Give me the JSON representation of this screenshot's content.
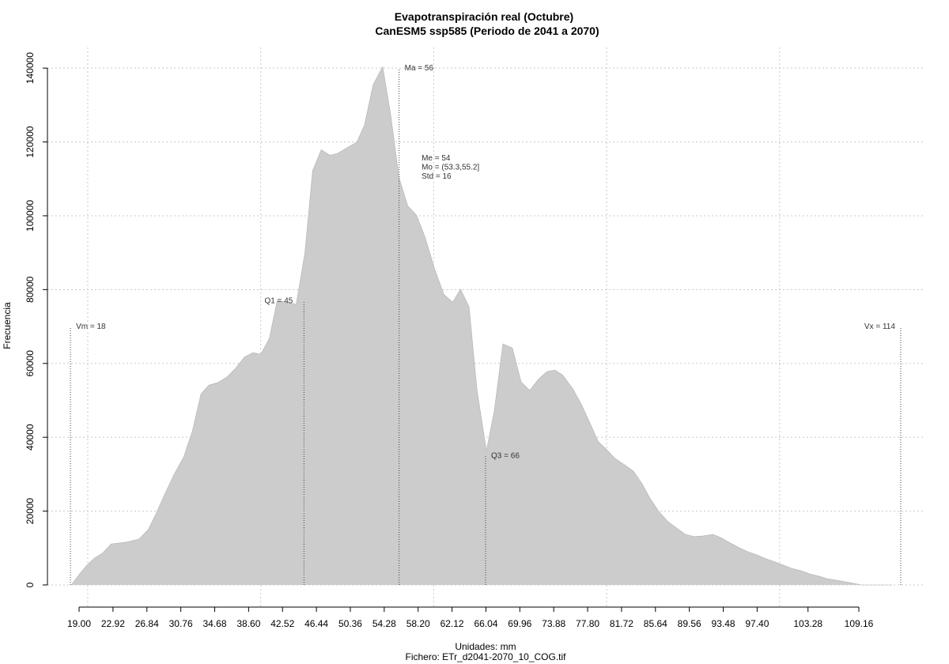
{
  "chart_data": {
    "type": "area",
    "title": "Evapotranspiración real (Octubre)",
    "subtitle": "CanESM5 ssp585 (Periodo de 2041 a 2070)",
    "x_label": "Unidades: mm",
    "caption": "Fichero: ETr_d2041-2070_10_COG.tif",
    "y_label": "Frecuencia",
    "color": "#cccccc",
    "x": [
      18.1,
      19.0,
      19.9,
      20.8,
      21.7,
      22.7,
      24.5,
      25.9,
      27.0,
      27.9,
      28.9,
      30.0,
      31.1,
      32.1,
      33.1,
      34.0,
      35.0,
      36.1,
      37.1,
      38.1,
      39.1,
      40.0,
      41.0,
      41.9,
      43.0,
      44.1,
      45.1,
      46.0,
      47.0,
      48.0,
      48.9,
      50.1,
      51.1,
      52.0,
      53.0,
      54.1,
      55.0,
      56.0,
      57.0,
      58.0,
      59.0,
      60.1,
      61.2,
      62.2,
      63.1,
      64.1,
      65.0,
      66.1,
      67.0,
      68.0,
      69.1,
      70.1,
      71.1,
      72.1,
      73.1,
      74.0,
      74.9,
      76.1,
      77.1,
      78.1,
      79.0,
      80.1,
      81.0,
      82.1,
      83.1,
      84.1,
      85.0,
      86.1,
      87.1,
      88.1,
      89.1,
      90.1,
      91.2,
      92.3,
      93.2,
      94.1,
      95.3,
      96.3,
      97.4,
      98.4,
      99.5,
      100.4,
      101.4,
      102.4,
      103.5,
      104.5,
      105.5,
      106.5,
      107.5,
      108.6,
      109.5,
      110.4,
      113.0
    ],
    "values": [
      0,
      2800,
      5400,
      7300,
      8600,
      11100,
      11600,
      12400,
      15000,
      19300,
      24600,
      30000,
      34700,
      41700,
      51800,
      54100,
      54800,
      56300,
      58700,
      61700,
      62900,
      62500,
      66800,
      77000,
      76600,
      76000,
      89900,
      112200,
      117900,
      116400,
      116900,
      118600,
      119900,
      124600,
      135500,
      140400,
      127800,
      110200,
      102700,
      100200,
      94200,
      85600,
      78600,
      76600,
      80100,
      75300,
      52900,
      36400,
      47100,
      65300,
      64200,
      55000,
      52700,
      55700,
      57800,
      58200,
      56900,
      53100,
      48800,
      43700,
      38900,
      36400,
      34200,
      32500,
      30800,
      27400,
      23500,
      19700,
      17100,
      15400,
      13700,
      13100,
      13300,
      13700,
      12800,
      11600,
      10100,
      9000,
      8100,
      7100,
      6200,
      5400,
      4500,
      3900,
      3000,
      2400,
      1700,
      1300,
      900,
      400,
      0,
      0,
      0
    ],
    "xlim": [
      15.34,
      116.84
    ],
    "ylim": [
      -6000,
      145600
    ],
    "xticks": [
      {
        "value": 19.0,
        "label": "19.00"
      },
      {
        "value": 22.92,
        "label": "22.92"
      },
      {
        "value": 26.84,
        "label": "26.84"
      },
      {
        "value": 30.76,
        "label": "30.76"
      },
      {
        "value": 34.68,
        "label": "34.68"
      },
      {
        "value": 38.6,
        "label": "38.60"
      },
      {
        "value": 42.52,
        "label": "42.52"
      },
      {
        "value": 46.44,
        "label": "46.44"
      },
      {
        "value": 50.36,
        "label": "50.36"
      },
      {
        "value": 54.28,
        "label": "54.28"
      },
      {
        "value": 58.2,
        "label": "58.20"
      },
      {
        "value": 62.12,
        "label": "62.12"
      },
      {
        "value": 66.04,
        "label": "66.04"
      },
      {
        "value": 69.96,
        "label": "69.96"
      },
      {
        "value": 73.88,
        "label": "73.88"
      },
      {
        "value": 77.8,
        "label": "77.80"
      },
      {
        "value": 81.72,
        "label": "81.72"
      },
      {
        "value": 85.64,
        "label": "85.64"
      },
      {
        "value": 89.56,
        "label": "89.56"
      },
      {
        "value": 93.48,
        "label": "93.48"
      },
      {
        "value": 97.4,
        "label": "97.40"
      },
      {
        "value": 103.28,
        "label": "103.28"
      },
      {
        "value": 109.16,
        "label": "109.16"
      }
    ],
    "yticks": [
      0,
      20000,
      40000,
      60000,
      80000,
      100000,
      120000,
      140000
    ],
    "xgrid": [
      20,
      40,
      60,
      80,
      100
    ],
    "grid": true,
    "annotations": [
      {
        "label": "Vm = 18",
        "x": 18,
        "y": 70000
      },
      {
        "label": "Q1 = 45",
        "x": 45,
        "y": 77000
      },
      {
        "label": "Ma = 56",
        "x": 56,
        "y": 140000
      },
      {
        "label": "Q3 = 66",
        "x": 66,
        "y": 35000
      },
      {
        "label": "Vx = 114",
        "x": 114,
        "y": 70000
      }
    ],
    "stats": {
      "x": 58.6,
      "y": 115000,
      "lines": [
        "Me = 54",
        "Mo = (53.3,55.2]",
        "Std = 16"
      ]
    }
  }
}
